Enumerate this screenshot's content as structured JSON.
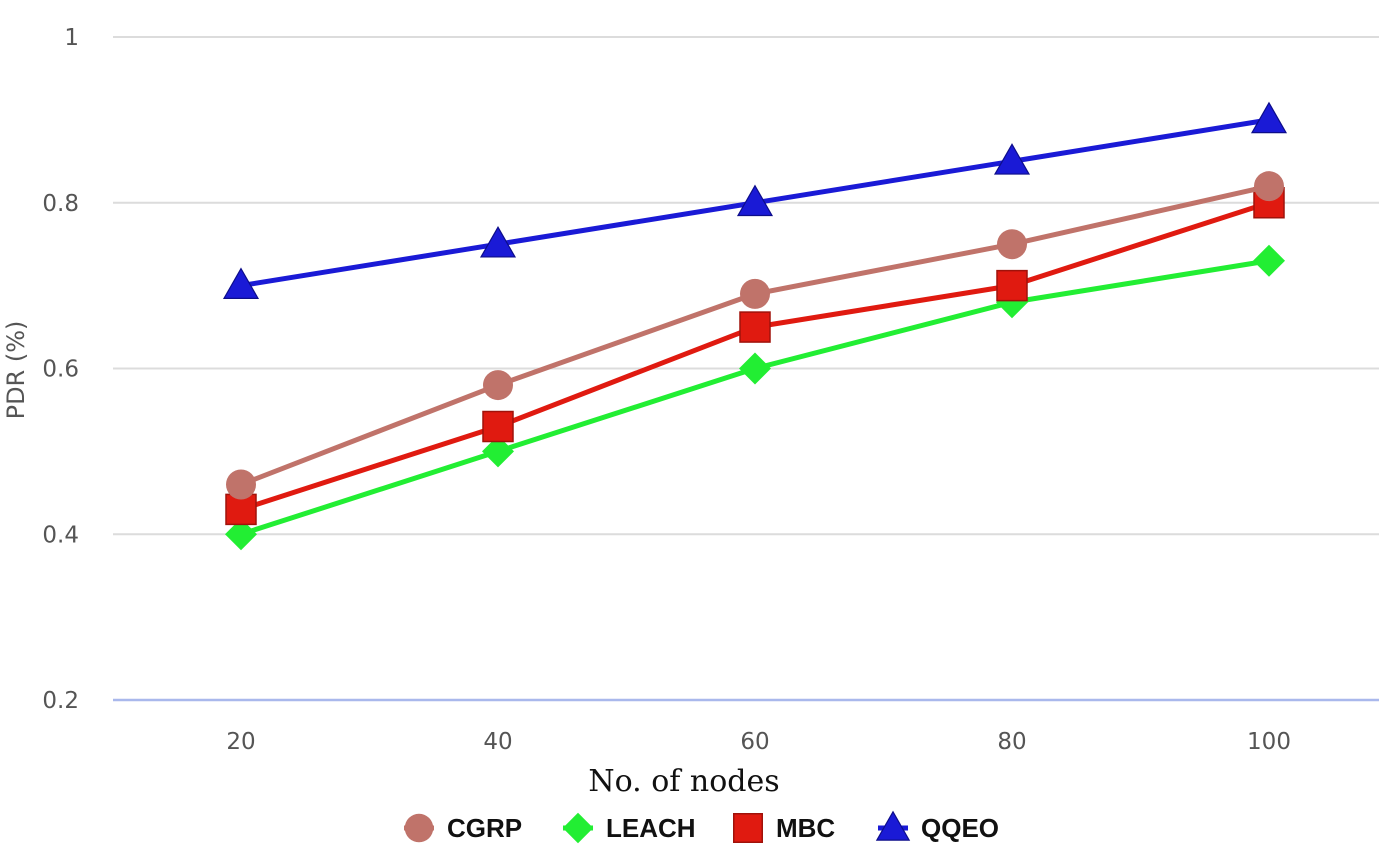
{
  "chart_data": {
    "type": "line",
    "title": "",
    "xlabel": "No. of nodes",
    "ylabel": "PDR (%)",
    "x": [
      20,
      40,
      60,
      80,
      100
    ],
    "x_tick_labels": [
      "20",
      "40",
      "60",
      "80",
      "100"
    ],
    "ylim": [
      0.2,
      1
    ],
    "y_ticks": [
      0.2,
      0.4,
      0.6,
      0.8,
      1
    ],
    "y_tick_labels": [
      "0.2",
      "0.4",
      "0.6",
      "0.8",
      "1"
    ],
    "grid": "horizontal",
    "legend_position": "bottom",
    "series": [
      {
        "name": "CGRP",
        "values": [
          0.46,
          0.58,
          0.69,
          0.75,
          0.82
        ],
        "color": "#c0736a",
        "marker": "circle"
      },
      {
        "name": "LEACH",
        "values": [
          0.4,
          0.5,
          0.6,
          0.68,
          0.73
        ],
        "color": "#22ee33",
        "marker": "diamond"
      },
      {
        "name": "MBC",
        "values": [
          0.43,
          0.53,
          0.65,
          0.7,
          0.8
        ],
        "color": "#e01a10",
        "marker": "square"
      },
      {
        "name": "QQEO",
        "values": [
          0.7,
          0.75,
          0.8,
          0.85,
          0.9
        ],
        "color": "#1a1ad6",
        "marker": "triangle"
      }
    ]
  }
}
